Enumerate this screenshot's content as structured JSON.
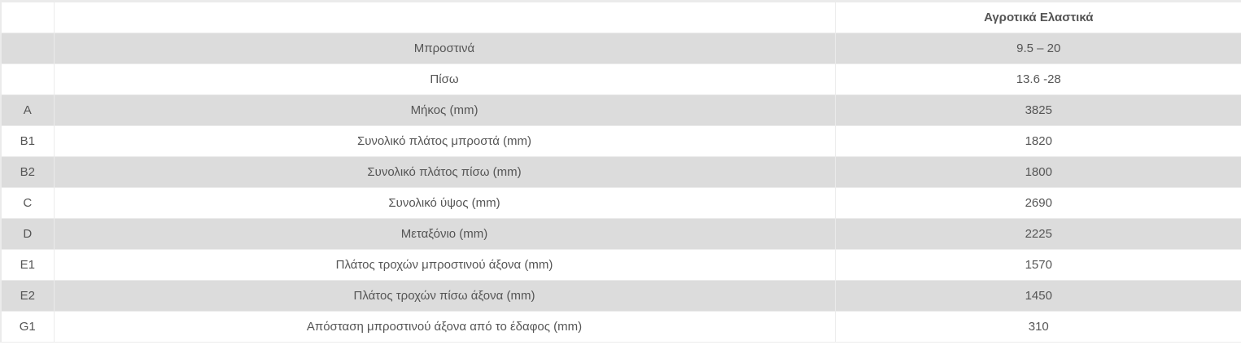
{
  "table": {
    "header": [
      "",
      "",
      "Αγροτικά Ελαστικά"
    ],
    "rows": [
      [
        "",
        "Μπροστινά",
        "9.5 – 20"
      ],
      [
        "",
        "Πίσω",
        "13.6 -28"
      ],
      [
        "A",
        "Μήκος (mm)",
        "3825"
      ],
      [
        "B1",
        "Συνολικό πλάτος μπροστά (mm)",
        "1820"
      ],
      [
        "B2",
        "Συνολικό πλάτος πίσω (mm)",
        "1800"
      ],
      [
        "C",
        "Συνολικό ύψος (mm)",
        "2690"
      ],
      [
        "D",
        "Μεταξόνιο (mm)",
        "2225"
      ],
      [
        "E1",
        "Πλάτος τροχών μπροστινού άξονα (mm)",
        "1570"
      ],
      [
        "E2",
        "Πλάτος τροχών πίσω άξονα (mm)",
        "1450"
      ],
      [
        "G1",
        "Απόσταση μπροστινού άξονα από το έδαφος (mm)",
        "310"
      ]
    ]
  }
}
